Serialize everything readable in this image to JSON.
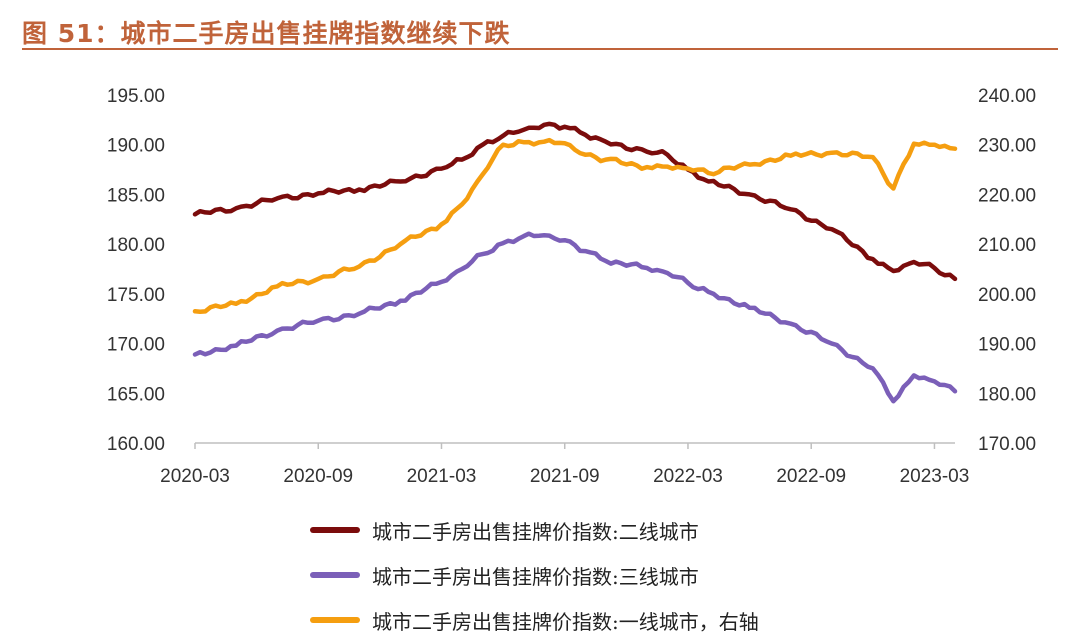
{
  "figure": {
    "title": "图 51：城市二手房出售挂牌指数继续下跌",
    "accent_color": "#c0633a"
  },
  "chart_data": {
    "type": "line",
    "x_ticks": [
      "2020-03",
      "2020-09",
      "2021-03",
      "2021-09",
      "2022-03",
      "2022-09",
      "2023-03"
    ],
    "x_range": [
      "2020-03",
      "2023-04"
    ],
    "left_axis": {
      "ylim": [
        160,
        195
      ],
      "tick_values": [
        160,
        165,
        170,
        175,
        180,
        185,
        190,
        195
      ],
      "tick_labels": [
        "160.00",
        "165.00",
        "170.00",
        "175.00",
        "180.00",
        "185.00",
        "190.00",
        "195.00"
      ]
    },
    "right_axis": {
      "ylim": [
        170,
        240
      ],
      "tick_values": [
        170,
        180,
        190,
        200,
        210,
        220,
        230,
        240
      ],
      "tick_labels": [
        "170.00",
        "180.00",
        "190.00",
        "200.00",
        "210.00",
        "220.00",
        "230.00",
        "240.00"
      ]
    },
    "grid": false,
    "legend_position": "bottom",
    "series": [
      {
        "name": "城市二手房出售挂牌价指数:二线城市",
        "color": "#7b0c0c",
        "axis": "left",
        "points": [
          [
            "2020-03",
            183.0
          ],
          [
            "2020-05",
            183.6
          ],
          [
            "2020-07",
            184.6
          ],
          [
            "2020-09",
            185.1
          ],
          [
            "2020-11",
            185.5
          ],
          [
            "2021-01",
            186.3
          ],
          [
            "2021-03",
            187.6
          ],
          [
            "2021-04",
            188.5
          ],
          [
            "2021-05",
            190.0
          ],
          [
            "2021-06",
            190.9
          ],
          [
            "2021-07",
            191.5
          ],
          [
            "2021-08",
            192.0
          ],
          [
            "2021-09",
            191.8
          ],
          [
            "2021-10",
            191.0
          ],
          [
            "2021-11",
            190.3
          ],
          [
            "2022-01",
            189.3
          ],
          [
            "2022-02",
            189.0
          ],
          [
            "2022-03",
            187.5
          ],
          [
            "2022-04",
            186.3
          ],
          [
            "2022-06",
            185.0
          ],
          [
            "2022-08",
            183.5
          ],
          [
            "2022-10",
            181.5
          ],
          [
            "2022-12",
            178.5
          ],
          [
            "2023-01",
            177.3
          ],
          [
            "2023-02",
            178.2
          ],
          [
            "2023-03",
            177.6
          ],
          [
            "2023-04",
            176.5
          ]
        ]
      },
      {
        "name": "城市二手房出售挂牌价指数:三线城市",
        "color": "#7b5fb8",
        "axis": "left",
        "points": [
          [
            "2020-03",
            168.9
          ],
          [
            "2020-05",
            169.8
          ],
          [
            "2020-07",
            171.3
          ],
          [
            "2020-09",
            172.3
          ],
          [
            "2020-11",
            173.0
          ],
          [
            "2021-01",
            174.3
          ],
          [
            "2021-03",
            176.2
          ],
          [
            "2021-04",
            177.5
          ],
          [
            "2021-05",
            179.0
          ],
          [
            "2021-06",
            180.1
          ],
          [
            "2021-07",
            180.8
          ],
          [
            "2021-08",
            180.9
          ],
          [
            "2021-09",
            180.4
          ],
          [
            "2021-10",
            179.3
          ],
          [
            "2021-11",
            178.3
          ],
          [
            "2022-01",
            177.6
          ],
          [
            "2022-02",
            177.1
          ],
          [
            "2022-03",
            176.1
          ],
          [
            "2022-04",
            175.2
          ],
          [
            "2022-06",
            173.6
          ],
          [
            "2022-08",
            172.0
          ],
          [
            "2022-10",
            170.0
          ],
          [
            "2022-12",
            167.5
          ],
          [
            "2023-01",
            164.2
          ],
          [
            "2023-02",
            166.8
          ],
          [
            "2023-03",
            166.2
          ],
          [
            "2023-04",
            165.2
          ]
        ]
      },
      {
        "name": "城市二手房出售挂牌价指数:一线城市，右轴",
        "color": "#f59e10",
        "axis": "right",
        "points": [
          [
            "2020-03",
            196.5
          ],
          [
            "2020-05",
            198.0
          ],
          [
            "2020-07",
            201.5
          ],
          [
            "2020-09",
            203.0
          ],
          [
            "2020-11",
            205.5
          ],
          [
            "2021-01",
            210.0
          ],
          [
            "2021-03",
            214.0
          ],
          [
            "2021-04",
            218.0
          ],
          [
            "2021-05",
            224.0
          ],
          [
            "2021-06",
            230.0
          ],
          [
            "2021-07",
            230.5
          ],
          [
            "2021-08",
            230.6
          ],
          [
            "2021-09",
            230.3
          ],
          [
            "2021-10",
            228.0
          ],
          [
            "2021-11",
            227.0
          ],
          [
            "2022-01",
            225.5
          ],
          [
            "2022-02",
            225.6
          ],
          [
            "2022-03",
            225.2
          ],
          [
            "2022-04",
            224.3
          ],
          [
            "2022-06",
            226.0
          ],
          [
            "2022-08",
            227.8
          ],
          [
            "2022-10",
            228.4
          ],
          [
            "2022-12",
            227.5
          ],
          [
            "2023-01",
            221.2
          ],
          [
            "2023-02",
            230.2
          ],
          [
            "2023-03",
            230.0
          ],
          [
            "2023-04",
            229.2
          ]
        ]
      }
    ]
  }
}
